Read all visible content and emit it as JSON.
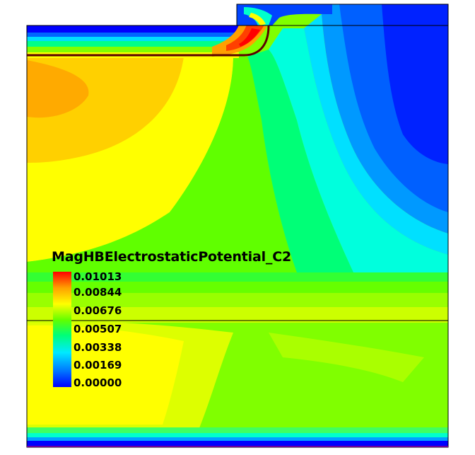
{
  "field_plot": {
    "variable": "MagHBElectrostaticPotential_C2",
    "colormap": [
      "#0000ff",
      "#0077ff",
      "#00eaff",
      "#00ff77",
      "#60ff00",
      "#ffff00",
      "#ffa000",
      "#ff0000"
    ],
    "legend_labels": [
      "0.01013",
      "0.00844",
      "0.00676",
      "0.00507",
      "0.00338",
      "0.00169",
      "0.00000"
    ],
    "range": [
      0.0,
      0.01013
    ]
  }
}
